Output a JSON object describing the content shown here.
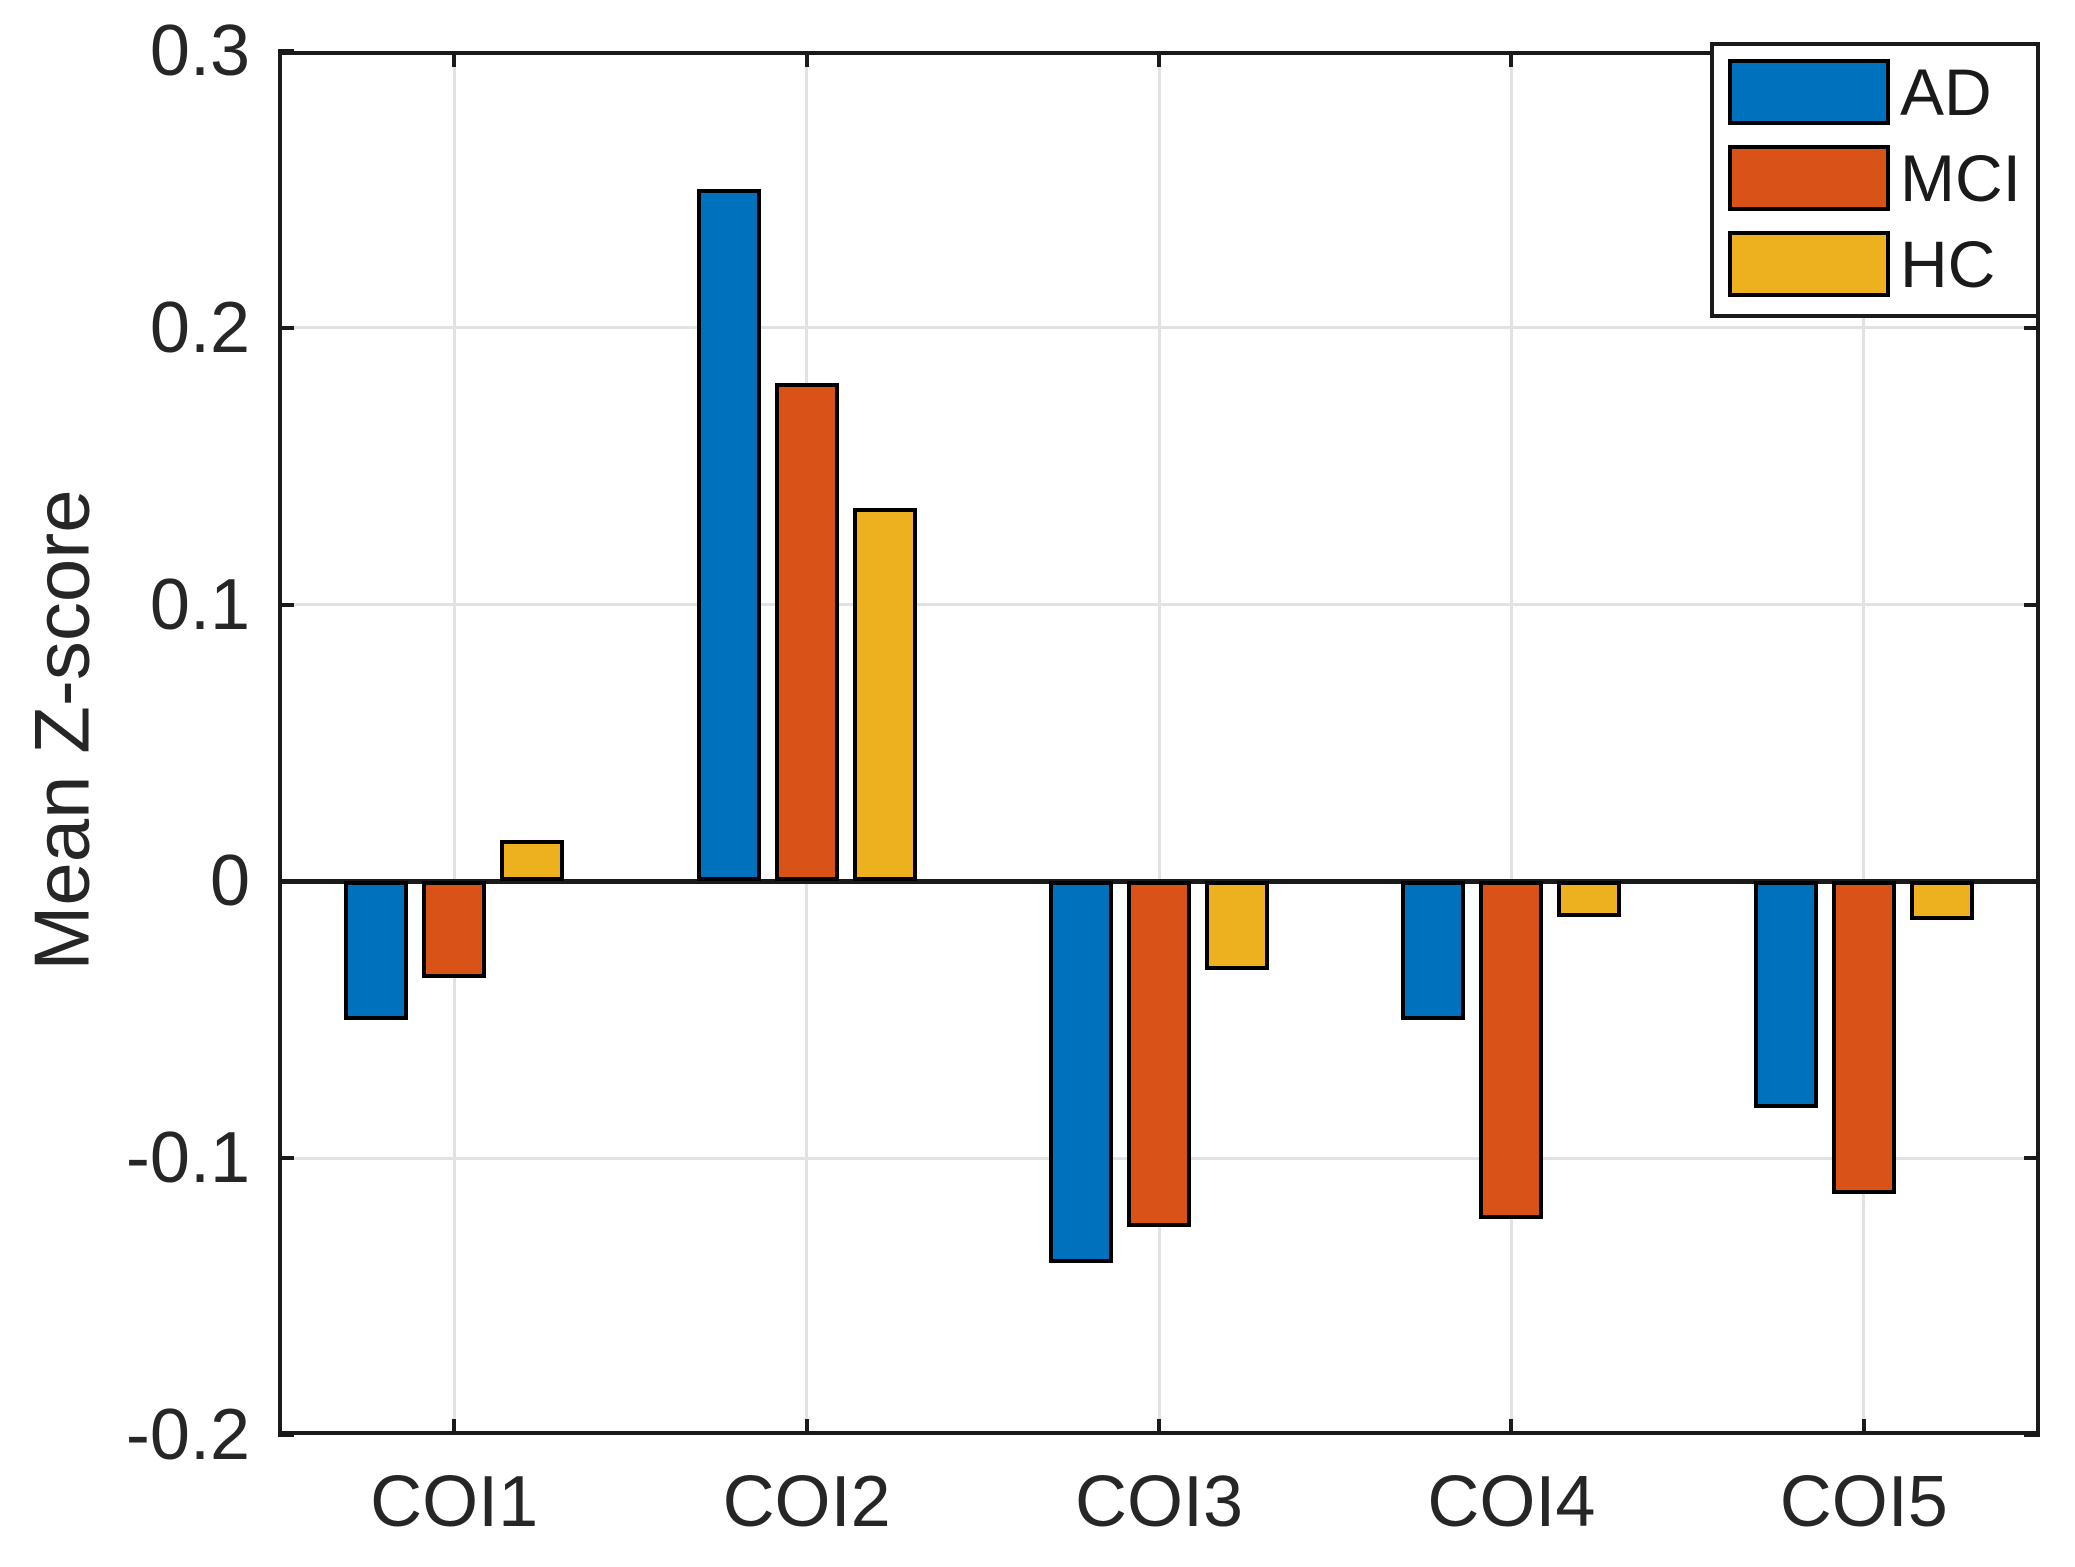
{
  "figure": {
    "background": "#ffffff",
    "axis_color": "#1a1a1a",
    "grid_color": "#e2e2e2",
    "text_color": "#262626"
  },
  "chart_data": {
    "type": "bar",
    "title": "",
    "xlabel": "",
    "ylabel": "Mean Z-score",
    "categories": [
      "COI1",
      "COI2",
      "COI3",
      "COI4",
      "COI5"
    ],
    "series": [
      {
        "name": "AD",
        "color": "#0072BD",
        "values": [
          -0.05,
          0.25,
          -0.138,
          -0.05,
          -0.082
        ]
      },
      {
        "name": "MCI",
        "color": "#D95319",
        "values": [
          -0.035,
          0.18,
          -0.125,
          -0.122,
          -0.113
        ]
      },
      {
        "name": "HC",
        "color": "#EDB120",
        "values": [
          0.015,
          0.135,
          -0.032,
          -0.013,
          -0.014
        ]
      }
    ],
    "ylim": [
      -0.2,
      0.3
    ],
    "ytick_values": [
      0.3,
      0.2,
      0.1,
      0,
      -0.1,
      -0.2
    ],
    "ytick_labels": [
      "0.3",
      "0.2",
      "0.1",
      "0",
      "-0.1",
      "-0.2"
    ],
    "grid": true,
    "bar_edge_color": "#000000",
    "legend_position": "top-right"
  }
}
